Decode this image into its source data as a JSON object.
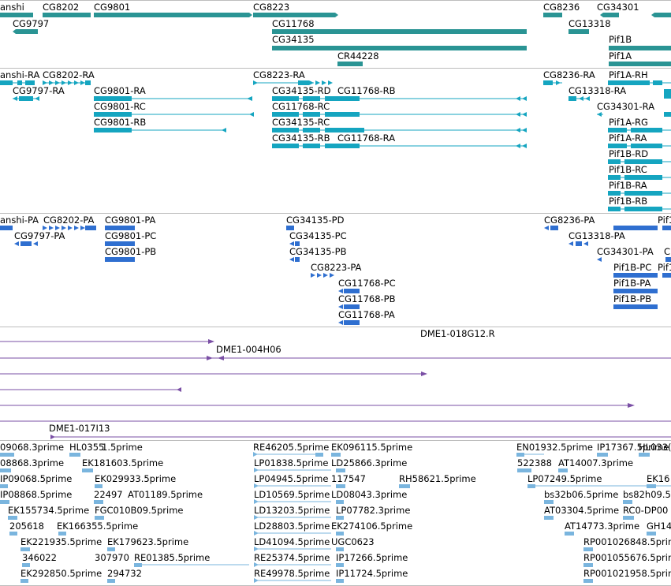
{
  "colors": {
    "gene": "#2a9494",
    "transcript": "#15a5c0",
    "protein": "#2f6fd0",
    "clone": "#7a4fa5",
    "est": "#7ab5de",
    "separator": "#bdbdbd"
  },
  "tiers": {
    "genes": [
      {
        "label": "anshi",
        "row": 0
      },
      {
        "label": "CG8202",
        "row": 0
      },
      {
        "label": "CG9801",
        "row": 0
      },
      {
        "label": "CG8223",
        "row": 0
      },
      {
        "label": "CG8236",
        "row": 0
      },
      {
        "label": "CG34301",
        "row": 0
      },
      {
        "label": "CG9797",
        "row": 1
      },
      {
        "label": "CG11768",
        "row": 1
      },
      {
        "label": "CG13318",
        "row": 1
      },
      {
        "label": "CG34135",
        "row": 2
      },
      {
        "label": "Pif1B",
        "row": 2
      },
      {
        "label": "CR44228",
        "row": 3
      },
      {
        "label": "Pif1A",
        "row": 3
      }
    ],
    "transcripts": [
      "anshi-RA",
      "CG8202-RA",
      "CG8223-RA",
      "CG8236-RA",
      "Pif1A-RH",
      "CG9797-RA",
      "CG9801-RA",
      "CG34135-RD",
      "CG11768-RB",
      "CG13318-RA",
      "CG9801-RC",
      "CG11768-RC",
      "CG34301-RA",
      "CG9801-RB",
      "CG34135-RC",
      "Pif1A-RG",
      "CG34135-RB",
      "CG11768-RA",
      "Pif1A-RA",
      "Pif1B-RD",
      "Pif1B-RC",
      "Pif1B-RA",
      "Pif1B-RB"
    ],
    "proteins": [
      "anshi-PA",
      "CG8202-PA",
      "CG9801-PA",
      "CG34135-PD",
      "CG8236-PA",
      "Pif1",
      "CG9797-PA",
      "CG9801-PC",
      "CG34135-PC",
      "CG13318-PA",
      "CG9801-PB",
      "CG34135-PB",
      "CG34301-PA",
      "C",
      "CG8223-PA",
      "Pif1B-PC",
      "Pif1",
      "CG11768-PC",
      "Pif1B-PA",
      "CG11768-PB",
      "Pif1B-PB",
      "CG11768-PA"
    ],
    "clones": [
      "DME1-018G12.R",
      "DME1-004H06",
      "DME1-017I13"
    ],
    "ests": [
      "09068.3prime",
      "HL0355",
      "1.5prime",
      "RE46205.5prime",
      "EK096115.5prime",
      "EN01932.5prime",
      "IP17367.5prime",
      "HL033(",
      "08868.3prime",
      "EK181603.5prime",
      "LP01838.5prime",
      "LD25866.3prime",
      "522388",
      "AT14007.3prime",
      "IP09068.5prime",
      "EK029933.5prime",
      "LP04945.5prime",
      "117547",
      "RH58621.5prime",
      "LP07249.5prime",
      "EK16",
      "IP08868.5prime",
      "22497",
      "AT01189.5prime",
      "LD10569.5prime",
      "LD08043.3prime",
      "bs32b06.5prime",
      "bs82h09.5",
      "EK155734.5prime",
      "FGC010B09.5prime",
      "LD13203.5prime",
      "LP07782.3prime",
      "AT03304.5prime",
      "RC0-DP00",
      "205618",
      "EK166355.5prime",
      "LD28803.5prime",
      "EK274106.5prime",
      "AT14773.3prime",
      "GH14",
      "EK221935.5prime",
      "EK179623.5prime",
      "LD41094.5prime",
      "UGC0623",
      "RP001026848.5prime",
      "346022",
      "307970",
      "RE01385.5prime",
      "RE25374.5prime",
      "IP17266.5prime",
      "RP001055676.5prime",
      "EK292850.5prime",
      "294732",
      "RE49978.5prime",
      "IP11724.5prime",
      "RP001021958.5prime"
    ]
  }
}
